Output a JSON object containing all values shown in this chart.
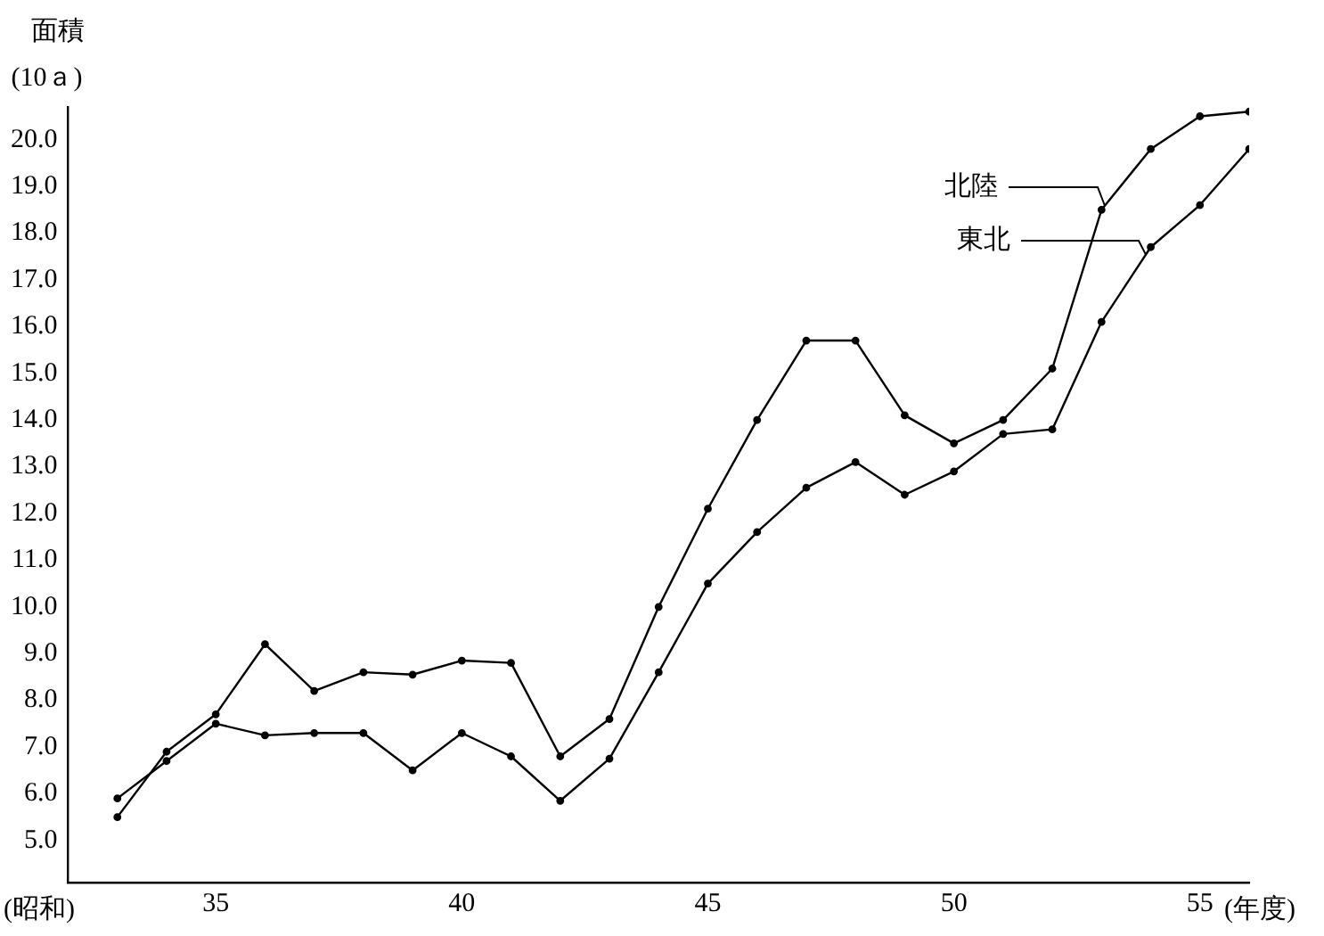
{
  "chart_data": {
    "type": "line",
    "ylabel": "面積\n(10ａ)",
    "xlabel": "(年度)",
    "x": [
      33,
      34,
      35,
      36,
      37,
      38,
      39,
      40,
      41,
      42,
      43,
      44,
      45,
      46,
      47,
      48,
      49,
      50,
      51,
      52,
      53,
      54,
      55,
      56
    ],
    "series": [
      {
        "name": "北陸",
        "color": "#000000",
        "values": [
          5.5,
          6.9,
          7.7,
          9.2,
          8.2,
          8.6,
          8.55,
          8.85,
          8.8,
          6.8,
          7.6,
          10.0,
          12.1,
          14.0,
          15.7,
          15.7,
          14.1,
          13.5,
          14.0,
          15.1,
          18.5,
          19.8,
          20.5,
          20.6
        ]
      },
      {
        "name": "東北",
        "color": "#000000",
        "values": [
          5.9,
          6.7,
          7.5,
          7.25,
          7.3,
          7.3,
          6.5,
          7.3,
          6.8,
          5.85,
          6.75,
          8.6,
          10.5,
          11.6,
          12.55,
          13.1,
          12.4,
          12.9,
          13.7,
          13.8,
          16.1,
          17.7,
          18.6,
          19.8
        ]
      }
    ],
    "xlim": [
      32,
      56
    ],
    "xticks": [
      35,
      40,
      45,
      50,
      55
    ],
    "ylim": [
      4.1,
      20.7
    ],
    "yticks": [
      {
        "value": 5,
        "label": "5.0"
      },
      {
        "value": 6,
        "label": "6.0"
      },
      {
        "value": 7,
        "label": "7.0"
      },
      {
        "value": 8,
        "label": "8.0"
      },
      {
        "value": 9,
        "label": "9.0"
      },
      {
        "value": 10,
        "label": "10.0"
      },
      {
        "value": 11,
        "label": "11.0"
      },
      {
        "value": 12,
        "label": "12.0"
      },
      {
        "value": 13,
        "label": "13.0"
      },
      {
        "value": 14,
        "label": "14.0"
      },
      {
        "value": 15,
        "label": "15.0"
      },
      {
        "value": 16,
        "label": "16.0"
      },
      {
        "value": 17,
        "label": "17.0"
      },
      {
        "value": 18,
        "label": "18.0"
      },
      {
        "value": 19,
        "label": "19.0"
      },
      {
        "value": 20,
        "label": "20.0"
      }
    ],
    "annotations": [
      "(昭和)"
    ],
    "marker": "circle",
    "line_style": "solid",
    "grid": false,
    "legend": "top right"
  }
}
